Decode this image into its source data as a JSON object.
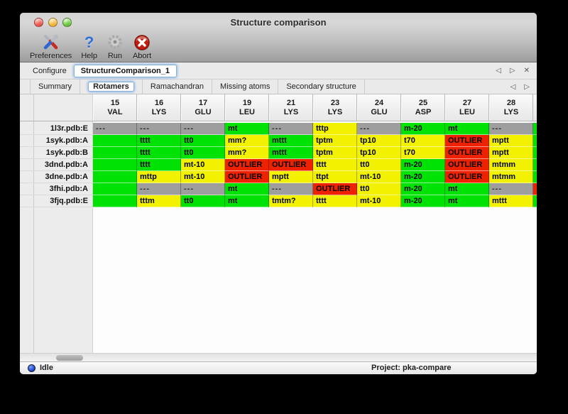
{
  "window": {
    "title": "Structure comparison"
  },
  "toolbar": {
    "items": [
      {
        "label": "Preferences"
      },
      {
        "label": "Help"
      },
      {
        "label": "Run"
      },
      {
        "label": "Abort"
      }
    ]
  },
  "configure": {
    "label": "Configure",
    "selected_config": "StructureComparison_1",
    "nav": {
      "prev": "◁",
      "next": "▷",
      "close": "✕"
    }
  },
  "tabs": {
    "items": [
      "Summary",
      "Rotamers",
      "Ramachandran",
      "Missing atoms",
      "Secondary structure"
    ],
    "selected": "Rotamers",
    "nav": {
      "prev": "◁",
      "next": "▷"
    }
  },
  "table": {
    "columns": [
      {
        "num": "15",
        "res": "VAL"
      },
      {
        "num": "16",
        "res": "LYS"
      },
      {
        "num": "17",
        "res": "GLU"
      },
      {
        "num": "19",
        "res": "LEU"
      },
      {
        "num": "21",
        "res": "LYS"
      },
      {
        "num": "23",
        "res": "LYS"
      },
      {
        "num": "24",
        "res": "GLU"
      },
      {
        "num": "25",
        "res": "ASP"
      },
      {
        "num": "27",
        "res": "LEU"
      },
      {
        "num": "28",
        "res": "LYS"
      }
    ],
    "rows": [
      {
        "label": "1l3r.pdb:E",
        "cells": [
          {
            "v": "---",
            "c": "gray"
          },
          {
            "v": "---",
            "c": "gray"
          },
          {
            "v": "---",
            "c": "gray"
          },
          {
            "v": "mt",
            "c": "green"
          },
          {
            "v": "---",
            "c": "gray"
          },
          {
            "v": "tttp",
            "c": "yellow"
          },
          {
            "v": "---",
            "c": "gray"
          },
          {
            "v": "m-20",
            "c": "green"
          },
          {
            "v": "mt",
            "c": "green"
          },
          {
            "v": "---",
            "c": "gray"
          }
        ],
        "clipped_next": "green"
      },
      {
        "label": "1syk.pdb:A",
        "cells": [
          {
            "v": "",
            "c": "green"
          },
          {
            "v": "tttt",
            "c": "green"
          },
          {
            "v": "tt0",
            "c": "green"
          },
          {
            "v": "mm?",
            "c": "yellow"
          },
          {
            "v": "mttt",
            "c": "green"
          },
          {
            "v": "tptm",
            "c": "yellow"
          },
          {
            "v": "tp10",
            "c": "yellow"
          },
          {
            "v": "t70",
            "c": "yellow"
          },
          {
            "v": "OUTLIER",
            "c": "red"
          },
          {
            "v": "mptt",
            "c": "yellow"
          }
        ],
        "clipped_next": "green"
      },
      {
        "label": "1syk.pdb:B",
        "cells": [
          {
            "v": "",
            "c": "green"
          },
          {
            "v": "tttt",
            "c": "green"
          },
          {
            "v": "tt0",
            "c": "green"
          },
          {
            "v": "mm?",
            "c": "yellow"
          },
          {
            "v": "mttt",
            "c": "green"
          },
          {
            "v": "tptm",
            "c": "yellow"
          },
          {
            "v": "tp10",
            "c": "yellow"
          },
          {
            "v": "t70",
            "c": "yellow"
          },
          {
            "v": "OUTLIER",
            "c": "red"
          },
          {
            "v": "mptt",
            "c": "yellow"
          }
        ],
        "clipped_next": "green"
      },
      {
        "label": "3dnd.pdb:A",
        "cells": [
          {
            "v": "",
            "c": "green"
          },
          {
            "v": "tttt",
            "c": "green"
          },
          {
            "v": "mt-10",
            "c": "yellow"
          },
          {
            "v": "OUTLIER",
            "c": "red"
          },
          {
            "v": "OUTLIER",
            "c": "red"
          },
          {
            "v": "tttt",
            "c": "yellow"
          },
          {
            "v": "tt0",
            "c": "yellow"
          },
          {
            "v": "m-20",
            "c": "green"
          },
          {
            "v": "OUTLIER",
            "c": "red"
          },
          {
            "v": "mtmm",
            "c": "yellow"
          }
        ],
        "clipped_next": "green"
      },
      {
        "label": "3dne.pdb:A",
        "cells": [
          {
            "v": "",
            "c": "green"
          },
          {
            "v": "mttp",
            "c": "yellow"
          },
          {
            "v": "mt-10",
            "c": "yellow"
          },
          {
            "v": "OUTLIER",
            "c": "red"
          },
          {
            "v": "mptt",
            "c": "yellow"
          },
          {
            "v": "ttpt",
            "c": "yellow"
          },
          {
            "v": "mt-10",
            "c": "yellow"
          },
          {
            "v": "m-20",
            "c": "green"
          },
          {
            "v": "OUTLIER",
            "c": "red"
          },
          {
            "v": "mtmm",
            "c": "yellow"
          }
        ],
        "clipped_next": "green"
      },
      {
        "label": "3fhi.pdb:A",
        "cells": [
          {
            "v": "",
            "c": "green"
          },
          {
            "v": "---",
            "c": "gray"
          },
          {
            "v": "---",
            "c": "gray"
          },
          {
            "v": "mt",
            "c": "green"
          },
          {
            "v": "---",
            "c": "gray"
          },
          {
            "v": "OUTLIER",
            "c": "red"
          },
          {
            "v": "tt0",
            "c": "yellow"
          },
          {
            "v": "m-20",
            "c": "green"
          },
          {
            "v": "mt",
            "c": "green"
          },
          {
            "v": "---",
            "c": "gray"
          }
        ],
        "clipped_next": "red"
      },
      {
        "label": "3fjq.pdb:E",
        "cells": [
          {
            "v": "",
            "c": "green"
          },
          {
            "v": "tttm",
            "c": "yellow"
          },
          {
            "v": "tt0",
            "c": "green"
          },
          {
            "v": "mt",
            "c": "green"
          },
          {
            "v": "tmtm?",
            "c": "yellow"
          },
          {
            "v": "tttt",
            "c": "yellow"
          },
          {
            "v": "mt-10",
            "c": "yellow"
          },
          {
            "v": "m-20",
            "c": "green"
          },
          {
            "v": "mt",
            "c": "green"
          },
          {
            "v": "mttt",
            "c": "yellow"
          }
        ],
        "clipped_next": "green"
      }
    ]
  },
  "status": {
    "state": "Idle",
    "project": "Project: pka-compare"
  },
  "colors": {
    "green": "#00e104",
    "yellow": "#f1f100",
    "red": "#ee2200",
    "gray": "#9e9e9e"
  }
}
